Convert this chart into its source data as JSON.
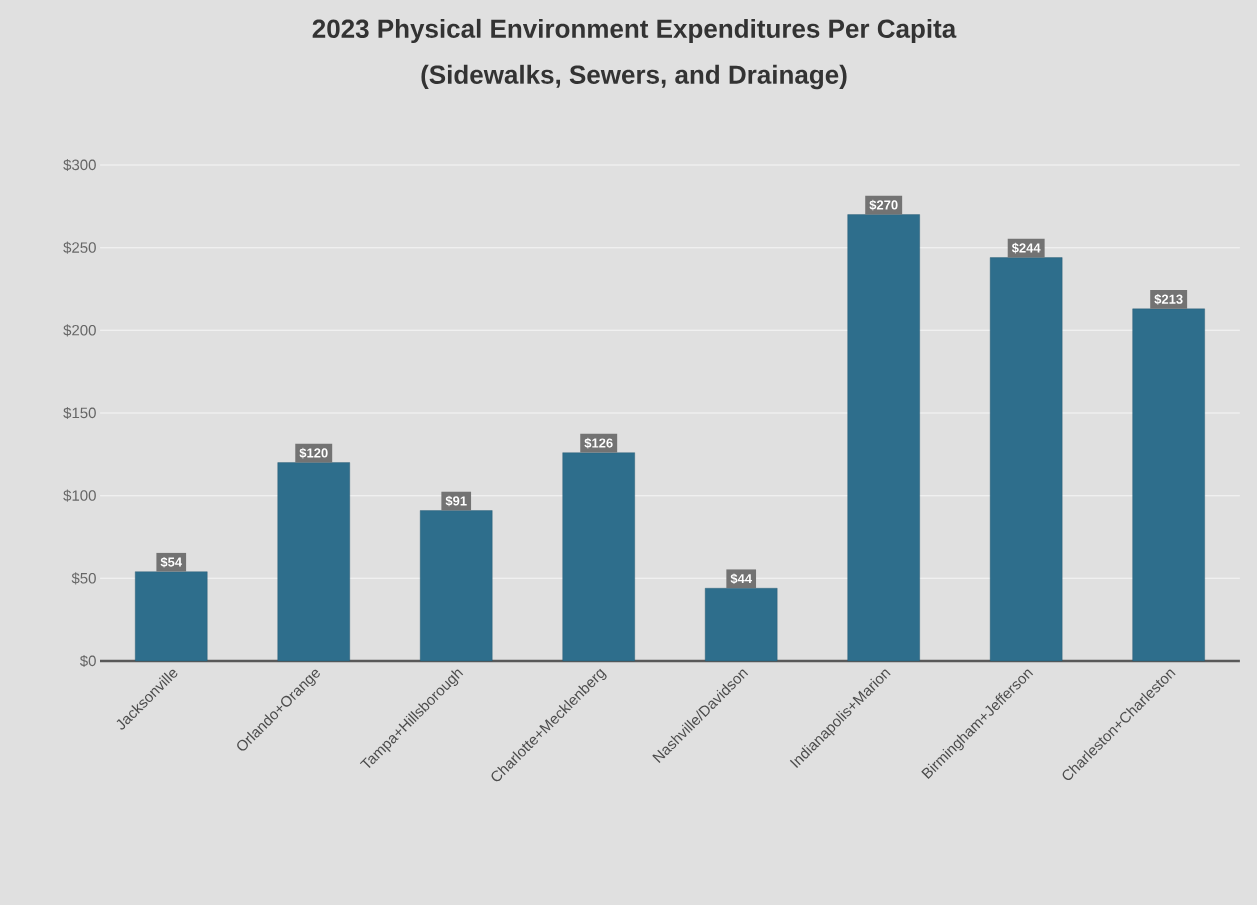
{
  "chart_data": {
    "type": "bar",
    "title": "2023 Physical Environment Expenditures Per Capita",
    "subtitle": "(Sidewalks, Sewers, and Drainage)",
    "categories": [
      "Jacksonville",
      "Orlando+Orange",
      "Tampa+Hillsborough",
      "Charlotte+Mecklenberg",
      "Nashville/Davidson",
      "Indianapolis+Marion",
      "Birmingham+Jefferson",
      "Charleston+Charleston"
    ],
    "values": [
      54,
      120,
      91,
      126,
      44,
      270,
      244,
      213
    ],
    "value_labels": [
      "$54",
      "$120",
      "$91",
      "$126",
      "$44",
      "$270",
      "$244",
      "$213"
    ],
    "color": "#2e6e8c",
    "ylim": [
      0,
      300
    ],
    "yticks": [
      {
        "value": 0,
        "label": "$0"
      },
      {
        "value": 50,
        "label": "$50"
      },
      {
        "value": 100,
        "label": "$100"
      },
      {
        "value": 150,
        "label": "$150"
      },
      {
        "value": 200,
        "label": "$200"
      },
      {
        "value": 250,
        "label": "$250"
      },
      {
        "value": 300,
        "label": "$300"
      }
    ],
    "grid": "y"
  }
}
